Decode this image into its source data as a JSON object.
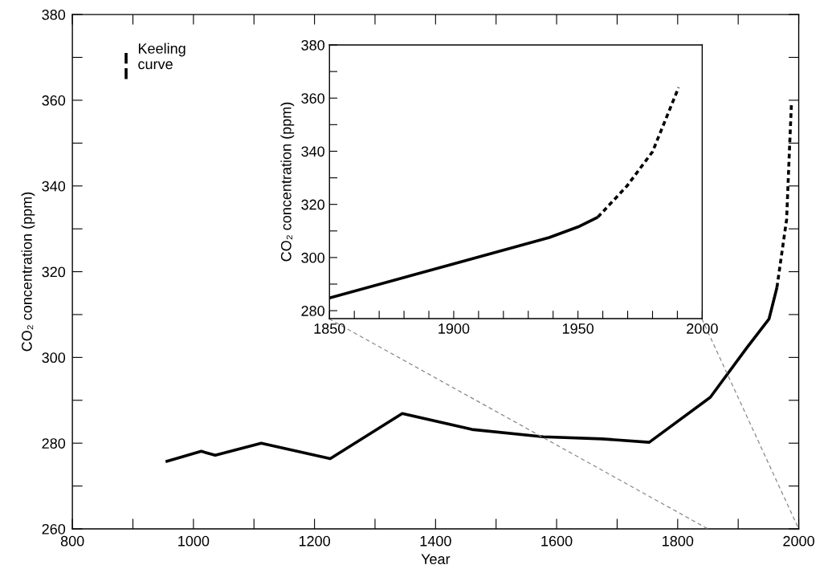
{
  "chart_data": [
    {
      "type": "line",
      "xlabel": "Year",
      "ylabel": "CO₂ concentration (ppm)",
      "xlim": [
        800,
        2000
      ],
      "ylim": [
        260,
        380
      ],
      "xticks": [
        800,
        {
          "value": 900,
          "label": null
        },
        1000,
        {
          "value": 1100,
          "label": null
        },
        1200,
        {
          "value": 1300,
          "label": null
        },
        1400,
        {
          "value": 1500,
          "label": null
        },
        1600,
        {
          "value": 1700,
          "label": null
        },
        1800,
        {
          "value": 1900,
          "label": null
        },
        2000
      ],
      "yticks": [
        260,
        {
          "value": 270,
          "label": null
        },
        280,
        {
          "value": 290,
          "label": null
        },
        300,
        {
          "value": 310,
          "label": null
        },
        320,
        {
          "value": 330,
          "label": null
        },
        340,
        {
          "value": 350,
          "label": null
        },
        360,
        {
          "value": 370,
          "label": null
        },
        380
      ],
      "legend": "top left",
      "grid": false,
      "series": [
        {
          "color": "#000000",
          "line_style": "solid",
          "x": [
            954,
            1013,
            1036,
            1112,
            1226,
            1345,
            1460,
            1578,
            1675,
            1753,
            1854,
            1914,
            1951,
            1964
          ],
          "values": [
            275.7,
            278.1,
            277.2,
            280.0,
            276.4,
            286.9,
            283.2,
            281.5,
            281.0,
            280.2,
            290.7,
            302.2,
            309.0,
            316.3
          ]
        },
        {
          "name": "Keeling\ncurve",
          "color": "#000000",
          "line_style": "dashed",
          "x": [
            1964,
            1980,
            1985,
            1988
          ],
          "values": [
            316.3,
            332.2,
            349.5,
            359.3
          ]
        },
        {
          "color": "#888888",
          "line_style": "connector",
          "x": [
            1224,
            1850
          ],
          "values": [
            309,
            260
          ]
        },
        {
          "color": "#888888",
          "line_style": "connector",
          "x": [
            1840,
            2000
          ],
          "values": [
            309,
            260
          ]
        }
      ]
    },
    {
      "type": "line",
      "ylabel": "CO₂ concentration (ppm)",
      "xlim": [
        1850,
        2000
      ],
      "ylim": [
        277,
        380
      ],
      "xticks": [
        1850,
        {
          "value": 1860,
          "label": null
        },
        {
          "value": 1870,
          "label": null
        },
        {
          "value": 1880,
          "label": null
        },
        {
          "value": 1890,
          "label": null
        },
        1900,
        {
          "value": 1910,
          "label": null
        },
        {
          "value": 1920,
          "label": null
        },
        {
          "value": 1930,
          "label": null
        },
        {
          "value": 1940,
          "label": null
        },
        1950,
        {
          "value": 1960,
          "label": null
        },
        {
          "value": 1970,
          "label": null
        },
        {
          "value": 1980,
          "label": null
        },
        {
          "value": 1990,
          "label": null
        },
        2000
      ],
      "yticks": [
        280,
        {
          "value": 290,
          "label": null
        },
        300,
        {
          "value": 310,
          "label": null
        },
        320,
        {
          "value": 330,
          "label": null
        },
        340,
        {
          "value": 350,
          "label": null
        },
        360,
        {
          "value": 370,
          "label": null
        },
        380
      ],
      "grid": false,
      "series": [
        {
          "color": "#000000",
          "line_style": "solid",
          "x": [
            1850,
            1900.3,
            1938.4,
            1950,
            1958
          ],
          "values": [
            284.8,
            297.7,
            307.5,
            311.5,
            315.2
          ]
        },
        {
          "color": "#000000",
          "line_style": "dashed",
          "x": [
            1958,
            1969.7,
            1980,
            1990.5
          ],
          "values": [
            315.2,
            326.9,
            339.8,
            364.0
          ]
        }
      ]
    }
  ]
}
